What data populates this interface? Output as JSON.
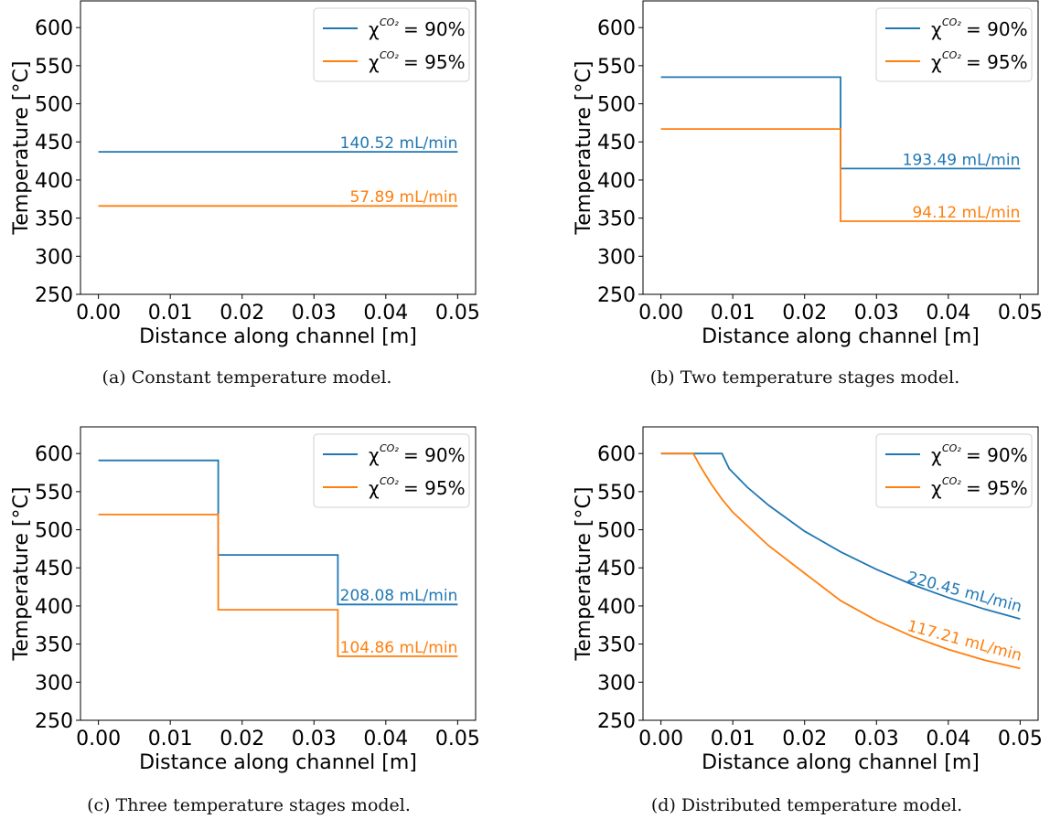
{
  "colors": {
    "series_90": "#1f77b4",
    "series_95": "#ff7f0e",
    "axis": "#000000"
  },
  "chart_data": [
    {
      "type": "line",
      "caption_label": "(a)",
      "caption_text": "Constant temperature model.",
      "xlabel": "Distance along channel [m]",
      "ylabel": "Temperature [°C]",
      "xlim": [
        -0.0025,
        0.0525
      ],
      "ylim": [
        250,
        635
      ],
      "xticks": [
        "0.00",
        "0.01",
        "0.02",
        "0.03",
        "0.04",
        "0.05"
      ],
      "yticks": [
        "250",
        "300",
        "350",
        "400",
        "450",
        "500",
        "550",
        "600"
      ],
      "legend_location": "top-right",
      "legend": [
        "= 90%",
        "= 95%"
      ],
      "series": [
        {
          "x": [
            0,
            0.05
          ],
          "y": [
            437,
            437
          ]
        },
        {
          "x": [
            0,
            0.05
          ],
          "y": [
            366,
            366
          ]
        }
      ],
      "annotations": [
        {
          "text": "140.52 mL/min",
          "x": 0.05,
          "y": 442,
          "rotation": 0
        },
        {
          "text": "57.89 mL/min",
          "x": 0.05,
          "y": 371,
          "rotation": 0
        }
      ]
    },
    {
      "type": "line",
      "caption_label": "(b)",
      "caption_text": "Two temperature stages model.",
      "xlabel": "Distance along channel [m]",
      "ylabel": "Temperature [°C]",
      "xlim": [
        -0.0025,
        0.0525
      ],
      "ylim": [
        250,
        635
      ],
      "xticks": [
        "0.00",
        "0.01",
        "0.02",
        "0.03",
        "0.04",
        "0.05"
      ],
      "yticks": [
        "250",
        "300",
        "350",
        "400",
        "450",
        "500",
        "550",
        "600"
      ],
      "legend_location": "top-right",
      "legend": [
        "= 90%",
        "= 95%"
      ],
      "series": [
        {
          "x": [
            0,
            0.025,
            0.025,
            0.05
          ],
          "y": [
            535,
            535,
            415,
            415
          ]
        },
        {
          "x": [
            0,
            0.025,
            0.025,
            0.05
          ],
          "y": [
            467,
            467,
            346,
            346
          ]
        }
      ],
      "annotations": [
        {
          "text": "193.49 mL/min",
          "x": 0.05,
          "y": 420,
          "rotation": 0
        },
        {
          "text": "94.12 mL/min",
          "x": 0.05,
          "y": 351,
          "rotation": 0
        }
      ]
    },
    {
      "type": "line",
      "caption_label": "(c)",
      "caption_text": "Three temperature stages model.",
      "xlabel": "Distance along channel [m]",
      "ylabel": "Temperature [°C]",
      "xlim": [
        -0.0025,
        0.0525
      ],
      "ylim": [
        250,
        635
      ],
      "xticks": [
        "0.00",
        "0.01",
        "0.02",
        "0.03",
        "0.04",
        "0.05"
      ],
      "yticks": [
        "250",
        "300",
        "350",
        "400",
        "450",
        "500",
        "550",
        "600"
      ],
      "legend_location": "top-right",
      "legend": [
        "= 90%",
        "= 95%"
      ],
      "series": [
        {
          "x": [
            0,
            0.01667,
            0.01667,
            0.03333,
            0.03333,
            0.05
          ],
          "y": [
            591,
            591,
            467,
            467,
            402,
            402
          ]
        },
        {
          "x": [
            0,
            0.01667,
            0.01667,
            0.03333,
            0.03333,
            0.05
          ],
          "y": [
            520,
            520,
            395,
            395,
            334,
            334
          ]
        }
      ],
      "annotations": [
        {
          "text": "208.08 mL/min",
          "x": 0.05,
          "y": 407,
          "rotation": 0
        },
        {
          "text": "104.86 mL/min",
          "x": 0.05,
          "y": 339,
          "rotation": 0
        }
      ]
    },
    {
      "type": "line",
      "caption_label": "(d)",
      "caption_text": "Distributed temperature model.",
      "xlabel": "Distance along channel [m]",
      "ylabel": "Temperature [°C]",
      "xlim": [
        -0.0025,
        0.0525
      ],
      "ylim": [
        250,
        635
      ],
      "xticks": [
        "0.00",
        "0.01",
        "0.02",
        "0.03",
        "0.04",
        "0.05"
      ],
      "yticks": [
        "250",
        "300",
        "350",
        "400",
        "450",
        "500",
        "550",
        "600"
      ],
      "legend_location": "top-right",
      "legend": [
        "= 90%",
        "= 95%"
      ],
      "series": [
        {
          "x": [
            0,
            0.0085,
            0.0095,
            0.012,
            0.015,
            0.02,
            0.025,
            0.03,
            0.035,
            0.04,
            0.045,
            0.05
          ],
          "y": [
            600,
            600,
            580,
            556,
            532,
            498,
            471,
            448,
            428,
            411,
            396,
            383
          ]
        },
        {
          "x": [
            0,
            0.0045,
            0.0055,
            0.007,
            0.0085,
            0.01,
            0.015,
            0.02,
            0.025,
            0.03,
            0.035,
            0.04,
            0.045,
            0.05
          ],
          "y": [
            600,
            600,
            583,
            560,
            540,
            523,
            479,
            443,
            407,
            381,
            360,
            343,
            329,
            318
          ]
        }
      ],
      "annotations": [
        {
          "text": "220.45 mL/min",
          "x": 0.05,
          "y": 392,
          "rotation": 15
        },
        {
          "text": "117.21 mL/min",
          "x": 0.05,
          "y": 328,
          "rotation": 15
        }
      ]
    }
  ]
}
